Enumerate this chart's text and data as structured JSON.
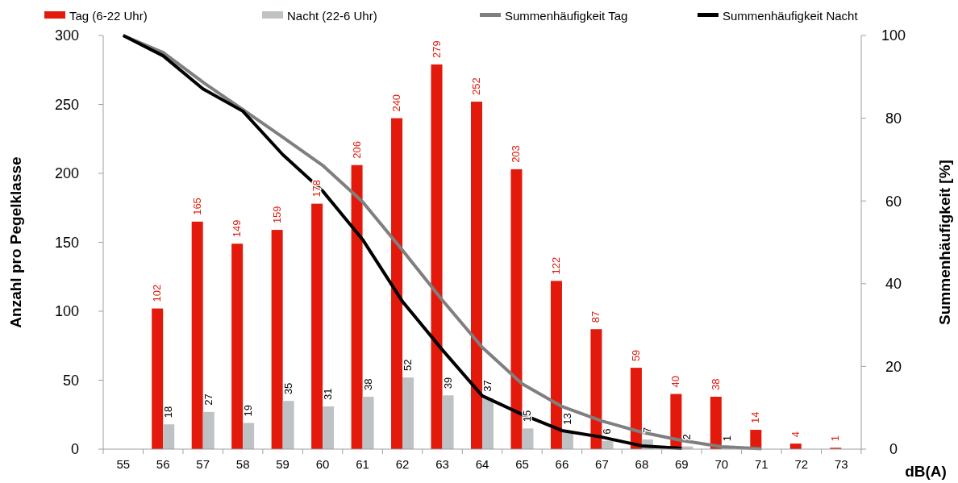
{
  "chart_data": {
    "type": "bar",
    "xlabel": "dB(A)",
    "ylabel": "Anzahl pro Pegelklasse",
    "y2label": "Summenhäufigkeit [%]",
    "categories": [
      "55",
      "56",
      "57",
      "58",
      "59",
      "60",
      "61",
      "62",
      "63",
      "64",
      "65",
      "66",
      "67",
      "68",
      "69",
      "70",
      "71",
      "72",
      "73"
    ],
    "series": [
      {
        "name": "Tag (6-22 Uhr)",
        "color": "#e2190b",
        "values": [
          null,
          102,
          165,
          149,
          159,
          178,
          206,
          240,
          279,
          252,
          203,
          122,
          87,
          59,
          40,
          38,
          14,
          4,
          1
        ],
        "value_labels": [
          null,
          "102",
          "165",
          "149",
          "159",
          "178",
          "206",
          "240",
          "279",
          "252",
          "203",
          "122",
          "87",
          "59",
          "40",
          "38",
          "14",
          "4",
          "1"
        ]
      },
      {
        "name": "Nacht (22-6 Uhr)",
        "color": "#bec2c4",
        "values": [
          null,
          18,
          27,
          19,
          35,
          31,
          38,
          52,
          39,
          37,
          15,
          13,
          6,
          7,
          2,
          1,
          null,
          null,
          null
        ],
        "value_labels": [
          null,
          "18",
          "27",
          "19",
          "35",
          "31",
          "38",
          "52",
          "39",
          "37",
          "15",
          "13",
          "6",
          "7",
          "2",
          "1",
          null,
          null,
          null
        ]
      },
      {
        "name": "Summenhäufigkeit Tag",
        "type": "line",
        "axis": "y2",
        "color": "#7f7f7f",
        "values": [
          100,
          95.9,
          88.7,
          82.1,
          75.4,
          68.6,
          59.8,
          48.1,
          36,
          24.6,
          15.8,
          10.3,
          6.8,
          4.1,
          2.1,
          0.6,
          0.1,
          null,
          null
        ]
      },
      {
        "name": "Summenhäufigkeit Nacht",
        "type": "line",
        "axis": "y2",
        "color": "#000000",
        "values": [
          100,
          95.1,
          87.1,
          81.7,
          71.2,
          62.4,
          50.7,
          35.7,
          24,
          12.9,
          8.4,
          4.5,
          2.9,
          0.8,
          0.2,
          null,
          null,
          null,
          null
        ]
      }
    ],
    "ylim": [
      0,
      300
    ],
    "yticks": [
      0,
      50,
      100,
      150,
      200,
      250,
      300
    ],
    "y2lim": [
      0,
      100
    ],
    "y2ticks": [
      0,
      20,
      40,
      60,
      80,
      100
    ],
    "legend": "top",
    "marker": "none",
    "line_style": "solid"
  }
}
